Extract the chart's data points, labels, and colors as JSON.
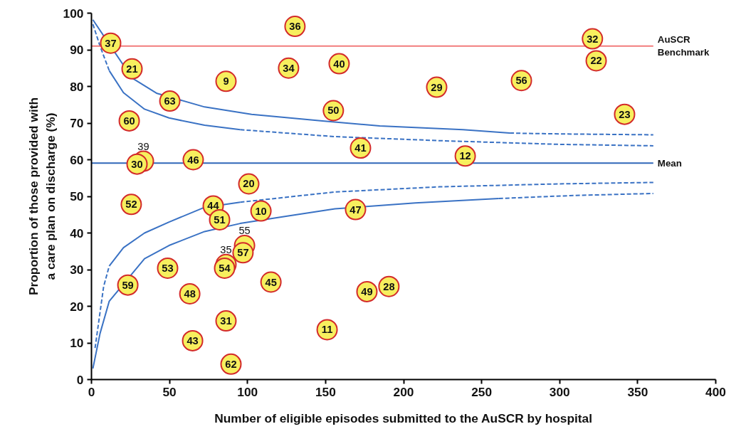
{
  "chart_data": {
    "type": "scatter",
    "xlabel": "Number of eligible episodes submitted to the AuSCR by hospital",
    "ylabel": "Proportion of those provided with\na care plan on discharge (%)",
    "xlim": [
      0,
      400
    ],
    "ylim": [
      0,
      100
    ],
    "xticks": [
      0,
      50,
      100,
      150,
      200,
      250,
      300,
      350,
      400
    ],
    "yticks": [
      0,
      10,
      20,
      30,
      40,
      50,
      60,
      70,
      80,
      90,
      100
    ],
    "grid": false,
    "series": [
      {
        "color": "#f7ef5e",
        "marker": "circle",
        "x": [
          12.3,
          130.4,
          321,
          323.4,
          26,
          86.2,
          126.3,
          158.7,
          221.2,
          275.5,
          50.2,
          155,
          341.6,
          24.2,
          33.3,
          29.2,
          65.2,
          172.4,
          239.5,
          100.8,
          25.5,
          78,
          82.1,
          108.6,
          169.2,
          98.1,
          97.1,
          86.2,
          85.3,
          48.8,
          115,
          23.3,
          63,
          176.5,
          190.6,
          86.2,
          151,
          64.8,
          89.4
        ],
        "values": [
          91.8,
          96.4,
          93,
          87,
          84.8,
          81.4,
          85,
          86.2,
          79.8,
          81.6,
          76,
          73.4,
          72.4,
          70.6,
          59.6,
          58.8,
          60,
          63.2,
          61,
          53.4,
          47.8,
          47.4,
          43.6,
          46,
          46.4,
          36.6,
          34.6,
          31.4,
          30.4,
          30.4,
          26.6,
          25.8,
          23.4,
          24,
          25.4,
          16,
          13.6,
          10.6,
          4.2
        ]
      },
      {
        "type": "line",
        "color": "#3a72c4",
        "line_style": "solid",
        "x": [
          0.9,
          26,
          42,
          72.5,
          102.6,
          148,
          184.7,
          238,
          268
        ],
        "values": [
          98.2,
          82.3,
          78.1,
          74.4,
          72.4,
          70.6,
          69.2,
          68.2,
          67.3
        ]
      },
      {
        "type": "line",
        "color": "#3a72c4",
        "line_style": "dashed",
        "x": [
          268,
          276,
          310,
          360
        ],
        "values": [
          67.3,
          67.2,
          67,
          66.8
        ]
      },
      {
        "type": "line",
        "color": "#3a72c4",
        "line_style": "dashed",
        "x": [
          0.9,
          5.5,
          11.4
        ],
        "values": [
          97,
          91,
          84.3
        ]
      },
      {
        "type": "line",
        "color": "#3a72c4",
        "line_style": "solid",
        "x": [
          11.4,
          20.5,
          34,
          49.7,
          72.5,
          95.3
        ],
        "values": [
          84.3,
          78.3,
          73.8,
          71.4,
          69.4,
          68.2
        ]
      },
      {
        "type": "line",
        "color": "#3a72c4",
        "line_style": "dashed",
        "x": [
          95.3,
          156,
          223,
          298.7,
          360
        ],
        "values": [
          68.2,
          66.3,
          65.2,
          64.2,
          63.8
        ]
      },
      {
        "type": "line",
        "color": "#3a72c4",
        "line_style": "solid",
        "x": [
          0.9,
          5.5,
          11.4,
          34,
          49.7,
          72.5,
          95.3,
          125.4,
          156,
          207.5,
          261
        ],
        "values": [
          3,
          12.6,
          21.4,
          33,
          36.6,
          40.4,
          42.6,
          44.6,
          46.6,
          48.2,
          49.4
        ]
      },
      {
        "type": "line",
        "color": "#3a72c4",
        "line_style": "dashed",
        "x": [
          261,
          306.5,
          360
        ],
        "values": [
          49.4,
          50.2,
          50.8
        ]
      },
      {
        "type": "line",
        "color": "#3a72c4",
        "line_style": "dashed",
        "x": [
          2.3,
          7.8,
          11.4
        ],
        "values": [
          8.6,
          25.4,
          31
        ]
      },
      {
        "type": "line",
        "color": "#3a72c4",
        "line_style": "solid",
        "x": [
          11.4,
          20.5,
          34,
          49.7,
          72.5,
          95.3
        ],
        "values": [
          31,
          36,
          40,
          43,
          47,
          48.4
        ]
      },
      {
        "type": "line",
        "color": "#3a72c4",
        "line_style": "dashed",
        "x": [
          95.3,
          156,
          223,
          298.7,
          360
        ],
        "values": [
          48.4,
          51.2,
          52.6,
          53.4,
          53.8
        ]
      }
    ],
    "annotations": [
      {
        "text": "37",
        "x": 12.3,
        "y": 91.8
      },
      {
        "text": "36",
        "x": 130.4,
        "y": 96.4
      },
      {
        "text": "32",
        "x": 321,
        "y": 93
      },
      {
        "text": "22",
        "x": 323.4,
        "y": 87
      },
      {
        "text": "21",
        "x": 26,
        "y": 84.8
      },
      {
        "text": "9",
        "x": 86.2,
        "y": 81.4
      },
      {
        "text": "34",
        "x": 126.3,
        "y": 85
      },
      {
        "text": "40",
        "x": 158.7,
        "y": 86.2
      },
      {
        "text": "29",
        "x": 221.2,
        "y": 79.8
      },
      {
        "text": "56",
        "x": 275.5,
        "y": 81.6
      },
      {
        "text": "63",
        "x": 50.2,
        "y": 76
      },
      {
        "text": "50",
        "x": 155,
        "y": 73.4
      },
      {
        "text": "23",
        "x": 341.6,
        "y": 72.4
      },
      {
        "text": "60",
        "x": 24.2,
        "y": 70.6
      },
      {
        "text": "39",
        "x": 33.3,
        "y": 59.6
      },
      {
        "text": "30",
        "x": 29.2,
        "y": 58.8
      },
      {
        "text": "46",
        "x": 65.2,
        "y": 60
      },
      {
        "text": "41",
        "x": 172.4,
        "y": 63.2
      },
      {
        "text": "12",
        "x": 239.5,
        "y": 61
      },
      {
        "text": "20",
        "x": 100.8,
        "y": 53.4
      },
      {
        "text": "52",
        "x": 25.5,
        "y": 47.8
      },
      {
        "text": "44",
        "x": 78,
        "y": 47.4
      },
      {
        "text": "51",
        "x": 82.1,
        "y": 43.6
      },
      {
        "text": "10",
        "x": 108.6,
        "y": 46
      },
      {
        "text": "47",
        "x": 169.2,
        "y": 46.4
      },
      {
        "text": "55",
        "x": 98.1,
        "y": 36.6
      },
      {
        "text": "57",
        "x": 97.1,
        "y": 34.6
      },
      {
        "text": "35",
        "x": 86.2,
        "y": 31.4
      },
      {
        "text": "54",
        "x": 85.3,
        "y": 30.4
      },
      {
        "text": "53",
        "x": 48.8,
        "y": 30.4
      },
      {
        "text": "45",
        "x": 115,
        "y": 26.6
      },
      {
        "text": "59",
        "x": 23.3,
        "y": 25.8
      },
      {
        "text": "48",
        "x": 63,
        "y": 23.4
      },
      {
        "text": "49",
        "x": 176.5,
        "y": 24
      },
      {
        "text": "28",
        "x": 190.6,
        "y": 25.4
      },
      {
        "text": "31",
        "x": 86.2,
        "y": 16
      },
      {
        "text": "11",
        "x": 151,
        "y": 13.6
      },
      {
        "text": "43",
        "x": 64.8,
        "y": 10.6
      },
      {
        "text": "62",
        "x": 89.4,
        "y": 4.2
      }
    ],
    "ref_lines": [
      {
        "axis": "y",
        "value": 91,
        "label": "AuSCR\nBenchmark",
        "color": "#f27b7b"
      },
      {
        "axis": "y",
        "value": 59.1,
        "label": "Mean",
        "color": "#2f67b8"
      }
    ]
  }
}
